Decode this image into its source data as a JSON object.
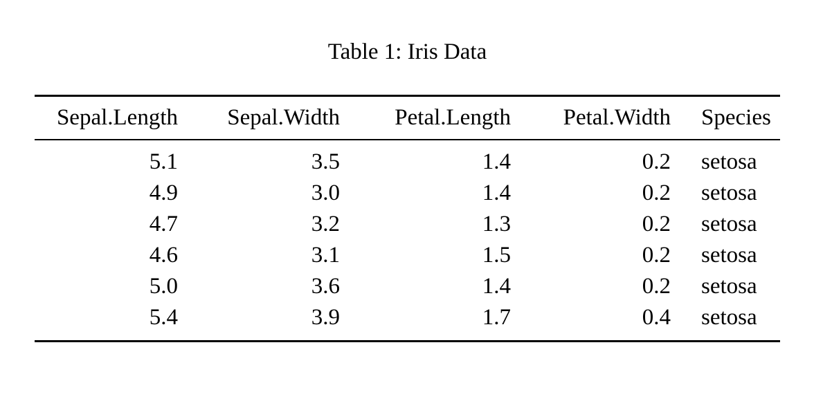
{
  "document": {
    "caption": "Table 1: Iris Data",
    "table": {
      "columns": [
        {
          "label": "Sepal.Length",
          "align": "right"
        },
        {
          "label": "Sepal.Width",
          "align": "right"
        },
        {
          "label": "Petal.Length",
          "align": "right"
        },
        {
          "label": "Petal.Width",
          "align": "right"
        },
        {
          "label": "Species",
          "align": "left"
        }
      ],
      "rows": [
        [
          "5.1",
          "3.5",
          "1.4",
          "0.2",
          "setosa"
        ],
        [
          "4.9",
          "3.0",
          "1.4",
          "0.2",
          "setosa"
        ],
        [
          "4.7",
          "3.2",
          "1.3",
          "0.2",
          "setosa"
        ],
        [
          "4.6",
          "3.1",
          "1.5",
          "0.2",
          "setosa"
        ],
        [
          "5.0",
          "3.6",
          "1.4",
          "0.2",
          "setosa"
        ],
        [
          "5.4",
          "3.9",
          "1.7",
          "0.4",
          "setosa"
        ]
      ]
    }
  }
}
